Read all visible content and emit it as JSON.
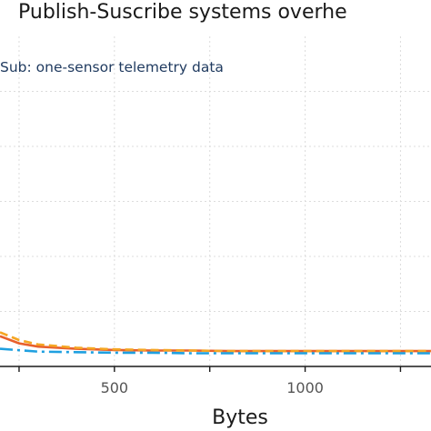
{
  "chart_data": {
    "type": "line",
    "title": "Publish-Suscribe systems overhe",
    "subtitle": "Sub: one-sensor telemetry data",
    "xlabel": "Bytes",
    "ylabel": "",
    "xlim": [
      200,
      1330
    ],
    "ylim": [
      0,
      6
    ],
    "x_ticks": [
      250,
      500,
      750,
      1000,
      1250
    ],
    "x_tick_labels": [
      "500",
      "1000"
    ],
    "x_tick_label_values": [
      500,
      1000
    ],
    "y_gridlines": [
      1,
      2,
      3,
      4,
      5
    ],
    "grid": true,
    "series": [
      {
        "color": "#e8602c",
        "dash": "solid",
        "x": [
          200,
          250,
          300,
          400,
          500,
          600,
          700,
          800,
          900,
          1000,
          1100,
          1200,
          1330
        ],
        "y": [
          0.55,
          0.42,
          0.36,
          0.32,
          0.3,
          0.29,
          0.29,
          0.28,
          0.28,
          0.28,
          0.28,
          0.28,
          0.28
        ]
      },
      {
        "color": "#f5a623",
        "dash": "dashed",
        "x": [
          200,
          250,
          300,
          400,
          500,
          600,
          700,
          800,
          900,
          1000,
          1100,
          1200,
          1330
        ],
        "y": [
          0.62,
          0.48,
          0.4,
          0.34,
          0.31,
          0.3,
          0.29,
          0.28,
          0.28,
          0.28,
          0.28,
          0.28,
          0.28
        ]
      },
      {
        "color": "#1fa0e0",
        "dash": "dashdot",
        "x": [
          200,
          300,
          400,
          500,
          600,
          700,
          800,
          900,
          1000,
          1100,
          1200,
          1330
        ],
        "y": [
          0.32,
          0.27,
          0.26,
          0.25,
          0.25,
          0.24,
          0.24,
          0.24,
          0.24,
          0.24,
          0.24,
          0.24
        ]
      }
    ]
  }
}
